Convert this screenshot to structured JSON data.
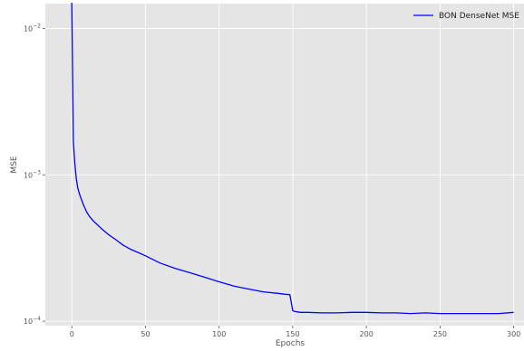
{
  "chart_data": {
    "type": "line",
    "title": "",
    "xlabel": "Epochs",
    "ylabel": "MSE",
    "xlim": [
      -18,
      307
    ],
    "ylim_exp": [
      -4.03,
      -1.83
    ],
    "y_scale": "log",
    "grid": true,
    "legend_position": "top-right",
    "x_ticks": [
      0,
      50,
      100,
      150,
      200,
      250,
      300
    ],
    "y_ticks": [
      {
        "exp": -2,
        "base": "10",
        "sup": "−2"
      },
      {
        "exp": -3,
        "base": "10",
        "sup": "−3"
      },
      {
        "exp": -4,
        "base": "10",
        "sup": "−4"
      }
    ],
    "series": [
      {
        "name": "BON DenseNet MSE",
        "color": "#0000ff",
        "x": [
          0,
          1,
          2,
          3,
          4,
          5,
          6,
          7,
          8,
          10,
          12,
          15,
          18,
          20,
          25,
          30,
          35,
          40,
          45,
          50,
          60,
          70,
          80,
          90,
          100,
          110,
          120,
          130,
          140,
          145,
          148,
          149,
          150,
          151,
          155,
          160,
          170,
          180,
          190,
          200,
          210,
          220,
          230,
          240,
          250,
          260,
          270,
          280,
          290,
          300
        ],
        "y": [
          0.015,
          0.0017,
          0.0012,
          0.00095,
          0.00082,
          0.00075,
          0.0007,
          0.00066,
          0.00062,
          0.00056,
          0.00052,
          0.00048,
          0.00045,
          0.00043,
          0.00039,
          0.00036,
          0.00033,
          0.00031,
          0.000295,
          0.00028,
          0.00025,
          0.00023,
          0.000215,
          0.0002,
          0.000186,
          0.000174,
          0.000166,
          0.000159,
          0.000155,
          0.000153,
          0.000152,
          0.000135,
          0.000118,
          0.000117,
          0.000115,
          0.000115,
          0.000114,
          0.000114,
          0.000115,
          0.000115,
          0.000114,
          0.000114,
          0.000113,
          0.000114,
          0.000113,
          0.000113,
          0.000113,
          0.000113,
          0.000113,
          0.000115
        ]
      }
    ]
  }
}
